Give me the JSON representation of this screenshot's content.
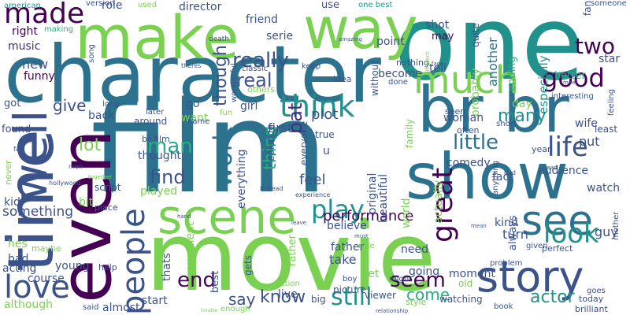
{
  "title": "",
  "palette": {
    "dark_purple": "#440154",
    "indigo": "#472d7b",
    "blue_violet": "#3b528b",
    "steel_blue": "#2c728e",
    "teal": "#21918c",
    "sea_green": "#28ae80",
    "green": "#5ec962",
    "lime": "#addc30",
    "light_lime": "#c7e020",
    "yellow": "#fde725"
  },
  "words": [
    {
      "text": "film",
      "color": "#2c728e"
    },
    {
      "text": "movie",
      "color": "#7ad151"
    },
    {
      "text": "one",
      "color": "#21918c"
    },
    {
      "text": "character",
      "color": "#2c728e"
    },
    {
      "text": "make",
      "color": "#7ad151"
    },
    {
      "text": "br br",
      "color": "#2c728e"
    },
    {
      "text": "show",
      "color": "#2c728e"
    },
    {
      "text": "even",
      "color": "#440154"
    },
    {
      "text": "time",
      "color": "#3b528b"
    },
    {
      "text": "way",
      "color": "#7ad151"
    },
    {
      "text": "scene",
      "color": "#7ad151"
    },
    {
      "text": "story",
      "color": "#3b528b"
    },
    {
      "text": "much",
      "color": "#7ad151"
    },
    {
      "text": "well",
      "color": "#3b528b"
    },
    {
      "text": "see",
      "color": "#2c728e"
    },
    {
      "text": "good",
      "color": "#440154"
    },
    {
      "text": "life",
      "color": "#3b528b"
    },
    {
      "text": "love",
      "color": "#3b528b"
    },
    {
      "text": "people",
      "color": "#3b528b"
    },
    {
      "text": "play",
      "color": "#21918c"
    },
    {
      "text": "look",
      "color": "#21918c"
    },
    {
      "text": "great",
      "color": "#440154"
    },
    {
      "text": "think",
      "color": "#21918c"
    },
    {
      "text": "little",
      "color": "#2c728e"
    },
    {
      "text": "end",
      "color": "#440154"
    },
    {
      "text": "still",
      "color": "#21918c"
    },
    {
      "text": "made",
      "color": "#440154"
    },
    {
      "text": "work",
      "color": "#2c728e"
    },
    {
      "text": "really",
      "color": "#3b528b"
    },
    {
      "text": "seem",
      "color": "#440154"
    },
    {
      "text": "actor",
      "color": "#21918c"
    },
    {
      "text": "man",
      "color": "#28ae80"
    },
    {
      "text": "two",
      "color": "#440154"
    },
    {
      "text": "real",
      "color": "#3b528b"
    },
    {
      "text": "find",
      "color": "#3b528b"
    },
    {
      "text": "pat",
      "color": "#472d7b"
    },
    {
      "text": "know",
      "color": "#3b528b"
    },
    {
      "text": "many",
      "color": "#21918c"
    },
    {
      "text": "thing",
      "color": "#28ae80"
    },
    {
      "text": "though",
      "color": "#3b528b"
    },
    {
      "text": "lot",
      "color": "#7ad151"
    },
    {
      "text": "give",
      "color": "#3b528b"
    },
    {
      "text": "say",
      "color": "#3b528b"
    },
    {
      "text": "feel",
      "color": "#3b528b"
    },
    {
      "text": "come",
      "color": "#28ae80"
    },
    {
      "text": "performance",
      "color": "#440154"
    },
    {
      "text": "plot",
      "color": "#3b528b"
    },
    {
      "text": "first",
      "color": "#3b528b"
    },
    {
      "text": "new",
      "color": "#3b528b"
    },
    {
      "text": "music",
      "color": "#472d7b"
    },
    {
      "text": "funny",
      "color": "#440154"
    },
    {
      "text": "right",
      "color": "#440154"
    },
    {
      "text": "role",
      "color": "#3b528b"
    },
    {
      "text": "director",
      "color": "#3b528b"
    },
    {
      "text": "friend",
      "color": "#3b528b"
    },
    {
      "text": "use",
      "color": "#3b528b"
    },
    {
      "text": "american",
      "color": "#21918c"
    },
    {
      "text": "version",
      "color": "#3b528b"
    },
    {
      "text": "used",
      "color": "#7ad151"
    },
    {
      "text": "one best",
      "color": "#21918c"
    },
    {
      "text": "quite",
      "color": "#3b528b"
    },
    {
      "text": "fan",
      "color": "#3b528b"
    },
    {
      "text": "someone",
      "color": "#3b528b"
    },
    {
      "text": "making",
      "color": "#28ae80"
    },
    {
      "text": "serie",
      "color": "#3b528b"
    },
    {
      "text": "shot",
      "color": "#3b528b"
    },
    {
      "text": "may",
      "color": "#440154"
    },
    {
      "text": "probably",
      "color": "#7ad151"
    },
    {
      "text": "ending",
      "color": "#28ae80"
    },
    {
      "text": "another",
      "color": "#2c728e"
    },
    {
      "text": "especially",
      "color": "#21918c"
    },
    {
      "text": "interesting",
      "color": "#3b528b"
    },
    {
      "text": "star",
      "color": "#3b528b"
    },
    {
      "text": "point",
      "color": "#3b528b"
    },
    {
      "text": "tell",
      "color": "#3b528b"
    },
    {
      "text": "nothing",
      "color": "#3b528b"
    },
    {
      "text": "become",
      "color": "#3b528b"
    },
    {
      "text": "better",
      "color": "#28ae80"
    },
    {
      "text": "without",
      "color": "#3b528b"
    },
    {
      "text": "idea",
      "color": "#3b528b"
    },
    {
      "text": "done",
      "color": "#3b528b"
    },
    {
      "text": "back",
      "color": "#3b528b"
    },
    {
      "text": "got",
      "color": "#3b528b"
    },
    {
      "text": "found",
      "color": "#3b528b"
    },
    {
      "text": "want",
      "color": "#7ad151"
    },
    {
      "text": "girl",
      "color": "#3b528b"
    },
    {
      "text": "fun",
      "color": "#7ad151"
    },
    {
      "text": "wonderful",
      "color": "#3b528b"
    },
    {
      "text": "others",
      "color": "#7ad151"
    },
    {
      "text": "go",
      "color": "#3b528b"
    },
    {
      "text": "name",
      "color": "#3b528b"
    },
    {
      "text": "later",
      "color": "#3b528b"
    },
    {
      "text": "around",
      "color": "#3b528b"
    },
    {
      "text": "br film",
      "color": "#3b528b"
    },
    {
      "text": "thought",
      "color": "#3b528b"
    },
    {
      "text": "episode",
      "color": "#3b528b"
    },
    {
      "text": "true",
      "color": "#3b528b"
    },
    {
      "text": "everyone",
      "color": "#3b528b"
    },
    {
      "text": "u",
      "color": "#3b528b"
    },
    {
      "text": "woman",
      "color": "#3b528b"
    },
    {
      "text": "often",
      "color": "#3b528b"
    },
    {
      "text": "day",
      "color": "#7ad151"
    },
    {
      "text": "seen",
      "color": "#3b528b"
    },
    {
      "text": "short",
      "color": "#3b528b"
    },
    {
      "text": "year",
      "color": "#3b528b"
    },
    {
      "text": "put",
      "color": "#3b528b"
    },
    {
      "text": "wife",
      "color": "#3b528b"
    },
    {
      "text": "least",
      "color": "#3b528b"
    },
    {
      "text": "fact",
      "color": "#3b528b"
    },
    {
      "text": "audience",
      "color": "#3b528b"
    },
    {
      "text": "kind",
      "color": "#3b528b"
    },
    {
      "text": "comedy",
      "color": "#3b528b"
    },
    {
      "text": "family",
      "color": "#7ad151"
    },
    {
      "text": "feeling",
      "color": "#3b528b"
    },
    {
      "text": "watch",
      "color": "#3b528b"
    },
    {
      "text": "anything",
      "color": "#3b528b"
    },
    {
      "text": "everything",
      "color": "#3b528b"
    },
    {
      "text": "played",
      "color": "#7ad151"
    },
    {
      "text": "script",
      "color": "#3b528b"
    },
    {
      "text": "bit",
      "color": "#7ad151"
    },
    {
      "text": "kid",
      "color": "#3b528b"
    },
    {
      "text": "something",
      "color": "#3b528b"
    },
    {
      "text": "never",
      "color": "#7ad151"
    },
    {
      "text": "place",
      "color": "#3b528b"
    },
    {
      "text": "world",
      "color": "#7ad151"
    },
    {
      "text": "believe",
      "color": "#3b528b"
    },
    {
      "text": "original",
      "color": "#3b528b"
    },
    {
      "text": "beautiful",
      "color": "#3b528b"
    },
    {
      "text": "actually",
      "color": "#7ad151"
    },
    {
      "text": "might",
      "color": "#3b528b"
    },
    {
      "text": "turn",
      "color": "#3b528b"
    },
    {
      "text": "guy",
      "color": "#3b528b"
    },
    {
      "text": "always",
      "color": "#3b528b"
    },
    {
      "text": "take",
      "color": "#3b528b"
    },
    {
      "text": "father",
      "color": "#3b528b"
    },
    {
      "text": "need",
      "color": "#3b528b"
    },
    {
      "text": "yet",
      "color": "#7ad151"
    },
    {
      "text": "moment",
      "color": "#3b528b"
    },
    {
      "text": "going",
      "color": "#3b528b"
    },
    {
      "text": "perfect",
      "color": "#3b528b"
    },
    {
      "text": "given",
      "color": "#3b528b"
    },
    {
      "text": "mother",
      "color": "#3b528b"
    },
    {
      "text": "acting",
      "color": "#3b528b"
    },
    {
      "text": "bad",
      "color": "#3b528b"
    },
    {
      "text": "hes",
      "color": "#7ad151"
    },
    {
      "text": "maybe",
      "color": "#7ad151"
    },
    {
      "text": "young",
      "color": "#3b528b"
    },
    {
      "text": "course",
      "color": "#3b528b"
    },
    {
      "text": "excellent",
      "color": "#7ad151"
    },
    {
      "text": "thats",
      "color": "#3b528b"
    },
    {
      "text": "gets",
      "color": "#3b528b"
    },
    {
      "text": "rather",
      "color": "#7ad151"
    },
    {
      "text": "live",
      "color": "#3b528b"
    },
    {
      "text": "big",
      "color": "#3b528b"
    },
    {
      "text": "style",
      "color": "#7ad151"
    },
    {
      "text": "problem",
      "color": "#3b528b"
    },
    {
      "text": "old",
      "color": "#7ad151"
    },
    {
      "text": "although",
      "color": "#7ad151"
    },
    {
      "text": "almost",
      "color": "#3b528b"
    },
    {
      "text": "start",
      "color": "#3b528b"
    },
    {
      "text": "best",
      "color": "#3b528b"
    },
    {
      "text": "action",
      "color": "#7ad151"
    },
    {
      "text": "boy",
      "color": "#3b528b"
    },
    {
      "text": "picture",
      "color": "#3b528b"
    },
    {
      "text": "viewer",
      "color": "#3b528b"
    },
    {
      "text": "watching",
      "color": "#3b528b"
    },
    {
      "text": "book",
      "color": "#3b528b"
    },
    {
      "text": "goes",
      "color": "#3b528b"
    },
    {
      "text": "today",
      "color": "#3b528b"
    },
    {
      "text": "brilliant",
      "color": "#3b528b"
    },
    {
      "text": "help",
      "color": "#3b528b"
    },
    {
      "text": "said",
      "color": "#3b528b"
    },
    {
      "text": "enough",
      "color": "#7ad151"
    },
    {
      "text": "song",
      "color": "#3b528b"
    },
    {
      "text": "long",
      "color": "#3b528b"
    },
    {
      "text": "men",
      "color": "#3b528b"
    },
    {
      "text": "far",
      "color": "#3b528b"
    },
    {
      "text": "hollywood",
      "color": "#3b528b"
    },
    {
      "text": "death",
      "color": "#3b528b"
    },
    {
      "text": "amazing",
      "color": "#3b528b"
    },
    {
      "text": "classic",
      "color": "#3b528b"
    },
    {
      "text": "theres",
      "color": "#3b528b"
    },
    {
      "text": "keep",
      "color": "#3b528b"
    },
    {
      "text": "different",
      "color": "#7ad151"
    },
    {
      "text": "face",
      "color": "#3b528b"
    },
    {
      "text": "meet",
      "color": "#3b528b"
    },
    {
      "text": "together",
      "color": "#7ad151"
    },
    {
      "text": "experience",
      "color": "#3b528b"
    },
    {
      "text": "instead",
      "color": "#3b528b"
    },
    {
      "text": "dvd",
      "color": "#3b528b"
    },
    {
      "text": "head",
      "color": "#3b528b"
    },
    {
      "text": "hand",
      "color": "#3b528b"
    },
    {
      "text": "leave",
      "color": "#3b528b"
    },
    {
      "text": "must",
      "color": "#3b528b"
    },
    {
      "text": "relationship",
      "color": "#3b528b"
    },
    {
      "text": "nice",
      "color": "#7ad151"
    },
    {
      "text": "mean",
      "color": "#3b528b"
    },
    {
      "text": "trouble",
      "color": "#7ad151"
    }
  ]
}
